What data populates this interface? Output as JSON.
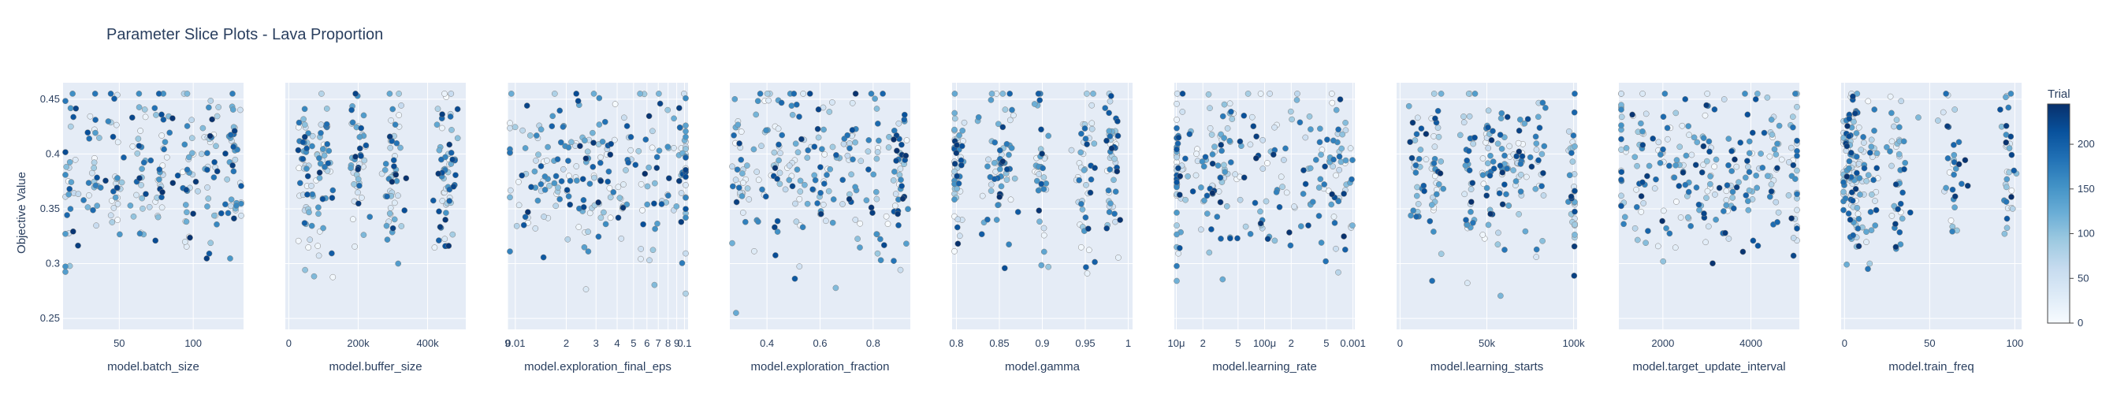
{
  "chart_data": {
    "type": "scatter",
    "title": "Parameter Slice Plots - Lava Proportion",
    "ylabel": "Objective Value",
    "ylim": [
      0.24,
      0.465
    ],
    "yticks": [
      {
        "v": 0.25,
        "label": "0.25"
      },
      {
        "v": 0.3,
        "label": "0.3"
      },
      {
        "v": 0.35,
        "label": "0.35"
      },
      {
        "v": 0.4,
        "label": "0.4"
      },
      {
        "v": 0.45,
        "label": "0.45"
      }
    ],
    "colorbar": {
      "title": "Trial",
      "range": [
        0,
        245
      ],
      "ticks": [
        {
          "v": 0,
          "label": "0"
        },
        {
          "v": 50,
          "label": "50"
        },
        {
          "v": 100,
          "label": "100"
        },
        {
          "v": 150,
          "label": "150"
        },
        {
          "v": 200,
          "label": "200"
        }
      ],
      "colorscale": [
        "#f7fbff",
        "#deebf7",
        "#c6dbef",
        "#9ecae1",
        "#6baed6",
        "#4292c6",
        "#2171b5",
        "#08519c",
        "#08306b"
      ]
    },
    "n_trials": 245,
    "panels": [
      {
        "xlabel": "model.batch_size",
        "scale": "linear",
        "xlim": [
          12,
          134
        ],
        "xticks": [
          {
            "v": 50,
            "label": "50"
          },
          {
            "v": 100,
            "label": "100"
          }
        ],
        "clusters": [
          [
            16,
            3
          ],
          [
            32,
            3
          ],
          [
            48,
            3
          ],
          [
            64,
            3
          ],
          [
            80,
            3
          ],
          [
            96,
            3
          ],
          [
            112,
            3
          ],
          [
            128,
            3
          ]
        ]
      },
      {
        "xlabel": "model.buffer_size",
        "scale": "linear",
        "xlim": [
          -10000,
          510000
        ],
        "xticks": [
          {
            "v": 0,
            "label": "0"
          },
          {
            "v": 200000,
            "label": "200k"
          },
          {
            "v": 400000,
            "label": "400k"
          }
        ],
        "clusters": [
          [
            50000,
            12000
          ],
          [
            100000,
            12000
          ],
          [
            200000,
            12000
          ],
          [
            300000,
            15000
          ],
          [
            450000,
            15000
          ]
        ]
      },
      {
        "xlabel": "model.exploration_final_eps",
        "scale": "log",
        "xlim": [
          0.009,
          0.105
        ],
        "xticks": [
          {
            "v": 0.009,
            "label": "9"
          },
          {
            "v": 0.01,
            "label": "0.01"
          },
          {
            "v": 0.02,
            "label": "2"
          },
          {
            "v": 0.03,
            "label": "3"
          },
          {
            "v": 0.04,
            "label": "4"
          },
          {
            "v": 0.05,
            "label": "5"
          },
          {
            "v": 0.06,
            "label": "6"
          },
          {
            "v": 0.07,
            "label": "7"
          },
          {
            "v": 0.08,
            "label": "8"
          },
          {
            "v": 0.09,
            "label": "9"
          },
          {
            "v": 0.1,
            "label": "0.1"
          }
        ],
        "clusters": [
          [
            0.01,
            0.15
          ],
          [
            0.014,
            0.15
          ],
          [
            0.02,
            0.12
          ],
          [
            0.027,
            0.12
          ],
          [
            0.035,
            0.1
          ],
          [
            0.05,
            0.1
          ],
          [
            0.07,
            0.1
          ],
          [
            0.1,
            0.05
          ]
        ]
      },
      {
        "xlabel": "model.exploration_fraction",
        "scale": "linear",
        "xlim": [
          0.26,
          0.94
        ],
        "xticks": [
          {
            "v": 0.4,
            "label": "0.4"
          },
          {
            "v": 0.6,
            "label": "0.6"
          },
          {
            "v": 0.8,
            "label": "0.8"
          }
        ],
        "clusters": [
          [
            0.3,
            0.02
          ],
          [
            0.4,
            0.03
          ],
          [
            0.5,
            0.03
          ],
          [
            0.6,
            0.03
          ],
          [
            0.7,
            0.03
          ],
          [
            0.8,
            0.03
          ],
          [
            0.9,
            0.02
          ]
        ]
      },
      {
        "xlabel": "model.gamma",
        "scale": "linear",
        "xlim": [
          0.795,
          1.005
        ],
        "xticks": [
          {
            "v": 0.8,
            "label": "0.8"
          },
          {
            "v": 0.85,
            "label": "0.85"
          },
          {
            "v": 0.9,
            "label": "0.9"
          },
          {
            "v": 0.95,
            "label": "0.95"
          },
          {
            "v": 1,
            "label": "1"
          }
        ],
        "clusters": [
          [
            0.8,
            0.004
          ],
          [
            0.85,
            0.008
          ],
          [
            0.9,
            0.006
          ],
          [
            0.95,
            0.006
          ],
          [
            0.98,
            0.005
          ]
        ]
      },
      {
        "xlabel": "model.learning_rate",
        "scale": "log",
        "xlim": [
          9.5e-06,
          0.00105
        ],
        "xticks": [
          {
            "v": 1e-05,
            "label": "10μ"
          },
          {
            "v": 2e-05,
            "label": "2"
          },
          {
            "v": 5e-05,
            "label": "5"
          },
          {
            "v": 0.0001,
            "label": "100μ"
          },
          {
            "v": 0.0002,
            "label": "2"
          },
          {
            "v": 0.0005,
            "label": "5"
          },
          {
            "v": 0.001,
            "label": "0.001"
          }
        ],
        "clusters": [
          [
            1e-05,
            0.15
          ],
          [
            3e-05,
            0.2
          ],
          [
            0.0001,
            0.25
          ],
          [
            0.0003,
            0.2
          ],
          [
            0.0007,
            0.15
          ]
        ]
      },
      {
        "xlabel": "model.learning_starts",
        "scale": "linear",
        "xlim": [
          -2000,
          102000
        ],
        "xticks": [
          {
            "v": 0,
            "label": "0"
          },
          {
            "v": 50000,
            "label": "50k"
          },
          {
            "v": 100000,
            "label": "100k"
          }
        ],
        "clusters": [
          [
            10000,
            2000
          ],
          [
            20000,
            2000
          ],
          [
            40000,
            2000
          ],
          [
            50000,
            2000
          ],
          [
            60000,
            2000
          ],
          [
            70000,
            2000
          ],
          [
            80000,
            2000
          ],
          [
            100000,
            2000
          ]
        ]
      },
      {
        "xlabel": "model.target_update_interval",
        "scale": "linear",
        "xlim": [
          1000,
          5100
        ],
        "xticks": [
          {
            "v": 2000,
            "label": "2000"
          },
          {
            "v": 4000,
            "label": "4000"
          }
        ],
        "clusters": [
          [
            1000,
            100
          ],
          [
            1500,
            120
          ],
          [
            2000,
            120
          ],
          [
            2500,
            120
          ],
          [
            3000,
            120
          ],
          [
            3500,
            120
          ],
          [
            4000,
            120
          ],
          [
            4500,
            120
          ],
          [
            5000,
            100
          ]
        ]
      },
      {
        "xlabel": "model.train_freq",
        "scale": "linear",
        "xlim": [
          -2,
          104
        ],
        "xticks": [
          {
            "v": 0,
            "label": "0"
          },
          {
            "v": 50,
            "label": "50"
          },
          {
            "v": 100,
            "label": "100"
          }
        ],
        "clusters": [
          [
            1,
            2
          ],
          [
            4,
            2
          ],
          [
            8,
            2
          ],
          [
            16,
            2
          ],
          [
            32,
            3
          ],
          [
            64,
            3
          ],
          [
            96,
            2
          ]
        ]
      }
    ]
  }
}
